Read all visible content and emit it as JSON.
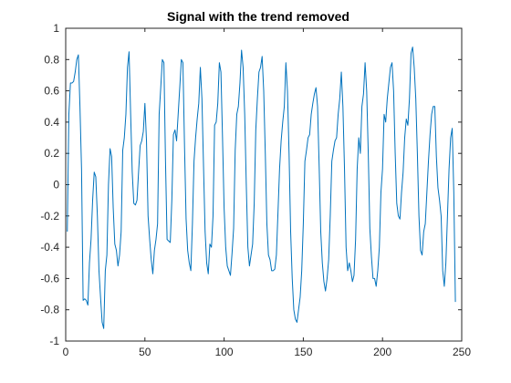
{
  "chart_data": {
    "type": "line",
    "title": "Signal with the trend removed",
    "xlabel": "",
    "ylabel": "",
    "xlim": [
      0,
      250
    ],
    "ylim": [
      -1,
      1
    ],
    "grid": false,
    "xticks": [
      0,
      50,
      100,
      150,
      200,
      250
    ],
    "xtick_labels": [
      "0",
      "50",
      "100",
      "150",
      "200",
      "250"
    ],
    "yticks": [
      -1,
      -0.8,
      -0.6,
      -0.4,
      -0.2,
      0,
      0.2,
      0.4,
      0.6,
      0.8,
      1
    ],
    "ytick_labels": [
      "-1",
      "-0.8",
      "-0.6",
      "-0.4",
      "-0.2",
      "0",
      "0.2",
      "0.4",
      "0.6",
      "0.8",
      "1"
    ],
    "series": [
      {
        "color": "#0072bd",
        "x": [
          1,
          2,
          3,
          4,
          5,
          6,
          7,
          8,
          9,
          10,
          11,
          12,
          13,
          14,
          15,
          16,
          17,
          18,
          19,
          20,
          21,
          22,
          23,
          24,
          25,
          26,
          27,
          28,
          29,
          30,
          31,
          32,
          33,
          34,
          35,
          36,
          37,
          38,
          39,
          40,
          41,
          42,
          43,
          44,
          45,
          46,
          47,
          48,
          49,
          50,
          51,
          52,
          53,
          54,
          55,
          56,
          57,
          58,
          59,
          60,
          61,
          62,
          63,
          64,
          65,
          66,
          67,
          68,
          69,
          70,
          71,
          72,
          73,
          74,
          75,
          76,
          77,
          78,
          79,
          80,
          81,
          82,
          83,
          84,
          85,
          86,
          87,
          88,
          89,
          90,
          91,
          92,
          93,
          94,
          95,
          96,
          97,
          98,
          99,
          100,
          101,
          102,
          103,
          104,
          105,
          106,
          107,
          108,
          109,
          110,
          111,
          112,
          113,
          114,
          115,
          116,
          117,
          118,
          119,
          120,
          121,
          122,
          123,
          124,
          125,
          126,
          127,
          128,
          129,
          130,
          131,
          132,
          133,
          134,
          135,
          136,
          137,
          138,
          139,
          140,
          141,
          142,
          143,
          144,
          145,
          146,
          147,
          148,
          149,
          150,
          151,
          152,
          153,
          154,
          155,
          156,
          157,
          158,
          159,
          160,
          161,
          162,
          163,
          164,
          165,
          166,
          167,
          168,
          169,
          170,
          171,
          172,
          173,
          174,
          175,
          176,
          177,
          178,
          179,
          180,
          181,
          182,
          183,
          184,
          185,
          186,
          187,
          188,
          189,
          190,
          191,
          192,
          193,
          194,
          195,
          196,
          197,
          198,
          199,
          200,
          201,
          202,
          203,
          204,
          205,
          206,
          207,
          208,
          209,
          210,
          211,
          212,
          213,
          214,
          215,
          216,
          217,
          218,
          219,
          220,
          221,
          222,
          223,
          224,
          225,
          226,
          227,
          228,
          229,
          230,
          231,
          232,
          233,
          234,
          235,
          236,
          237,
          238,
          239,
          240,
          241,
          242,
          243,
          244,
          245,
          246
        ],
        "y": [
          -0.3,
          0.45,
          0.65,
          0.65,
          0.66,
          0.72,
          0.8,
          0.83,
          0.5,
          0.1,
          -0.74,
          -0.73,
          -0.74,
          -0.77,
          -0.5,
          -0.35,
          -0.1,
          0.08,
          0.05,
          -0.2,
          -0.55,
          -0.72,
          -0.88,
          -0.92,
          -0.55,
          -0.45,
          0.0,
          0.23,
          0.18,
          -0.15,
          -0.38,
          -0.42,
          -0.52,
          -0.45,
          -0.3,
          0.22,
          0.3,
          0.45,
          0.75,
          0.85,
          0.45,
          0.08,
          -0.12,
          -0.13,
          -0.1,
          0.08,
          0.25,
          0.28,
          0.34,
          0.52,
          0.28,
          -0.2,
          -0.35,
          -0.48,
          -0.57,
          -0.42,
          -0.35,
          -0.25,
          0.45,
          0.62,
          0.8,
          0.78,
          0.15,
          -0.35,
          -0.36,
          -0.37,
          -0.1,
          0.32,
          0.35,
          0.28,
          0.45,
          0.62,
          0.8,
          0.78,
          0.25,
          -0.22,
          -0.42,
          -0.5,
          -0.55,
          -0.25,
          0.15,
          0.3,
          0.42,
          0.52,
          0.75,
          0.55,
          0.12,
          -0.3,
          -0.5,
          -0.57,
          -0.38,
          -0.4,
          -0.2,
          0.38,
          0.4,
          0.52,
          0.78,
          0.72,
          0.3,
          -0.15,
          -0.4,
          -0.52,
          -0.55,
          -0.58,
          -0.44,
          -0.28,
          0.22,
          0.45,
          0.5,
          0.65,
          0.86,
          0.75,
          0.45,
          0.0,
          -0.4,
          -0.52,
          -0.45,
          -0.38,
          -0.12,
          0.35,
          0.55,
          0.72,
          0.75,
          0.82,
          0.6,
          0.2,
          -0.25,
          -0.45,
          -0.48,
          -0.55,
          -0.55,
          -0.54,
          -0.45,
          -0.18,
          0.1,
          0.28,
          0.4,
          0.5,
          0.78,
          0.6,
          0.2,
          -0.3,
          -0.6,
          -0.8,
          -0.86,
          -0.88,
          -0.8,
          -0.72,
          -0.55,
          -0.25,
          0.15,
          0.22,
          0.3,
          0.32,
          0.45,
          0.52,
          0.58,
          0.62,
          0.5,
          0.12,
          -0.3,
          -0.5,
          -0.62,
          -0.68,
          -0.6,
          -0.48,
          -0.2,
          0.15,
          0.22,
          0.28,
          0.3,
          0.45,
          0.55,
          0.72,
          0.5,
          0.1,
          -0.4,
          -0.55,
          -0.5,
          -0.55,
          -0.62,
          -0.58,
          -0.35,
          0.1,
          0.3,
          0.2,
          0.5,
          0.58,
          0.78,
          0.6,
          0.2,
          -0.28,
          -0.46,
          -0.6,
          -0.6,
          -0.65,
          -0.55,
          -0.4,
          -0.05,
          0.1,
          0.45,
          0.4,
          0.55,
          0.65,
          0.75,
          0.78,
          0.6,
          0.2,
          -0.12,
          -0.2,
          -0.22,
          -0.05,
          0.08,
          0.3,
          0.42,
          0.38,
          0.55,
          0.84,
          0.88,
          0.75,
          0.55,
          0.2,
          -0.2,
          -0.42,
          -0.45,
          -0.3,
          -0.25,
          -0.05,
          0.15,
          0.32,
          0.45,
          0.5,
          0.5,
          0.18,
          -0.02,
          -0.1,
          -0.2,
          -0.55,
          -0.65,
          -0.5,
          -0.2,
          0.1,
          0.3,
          0.36,
          -0.05,
          -0.75
        ]
      }
    ]
  }
}
